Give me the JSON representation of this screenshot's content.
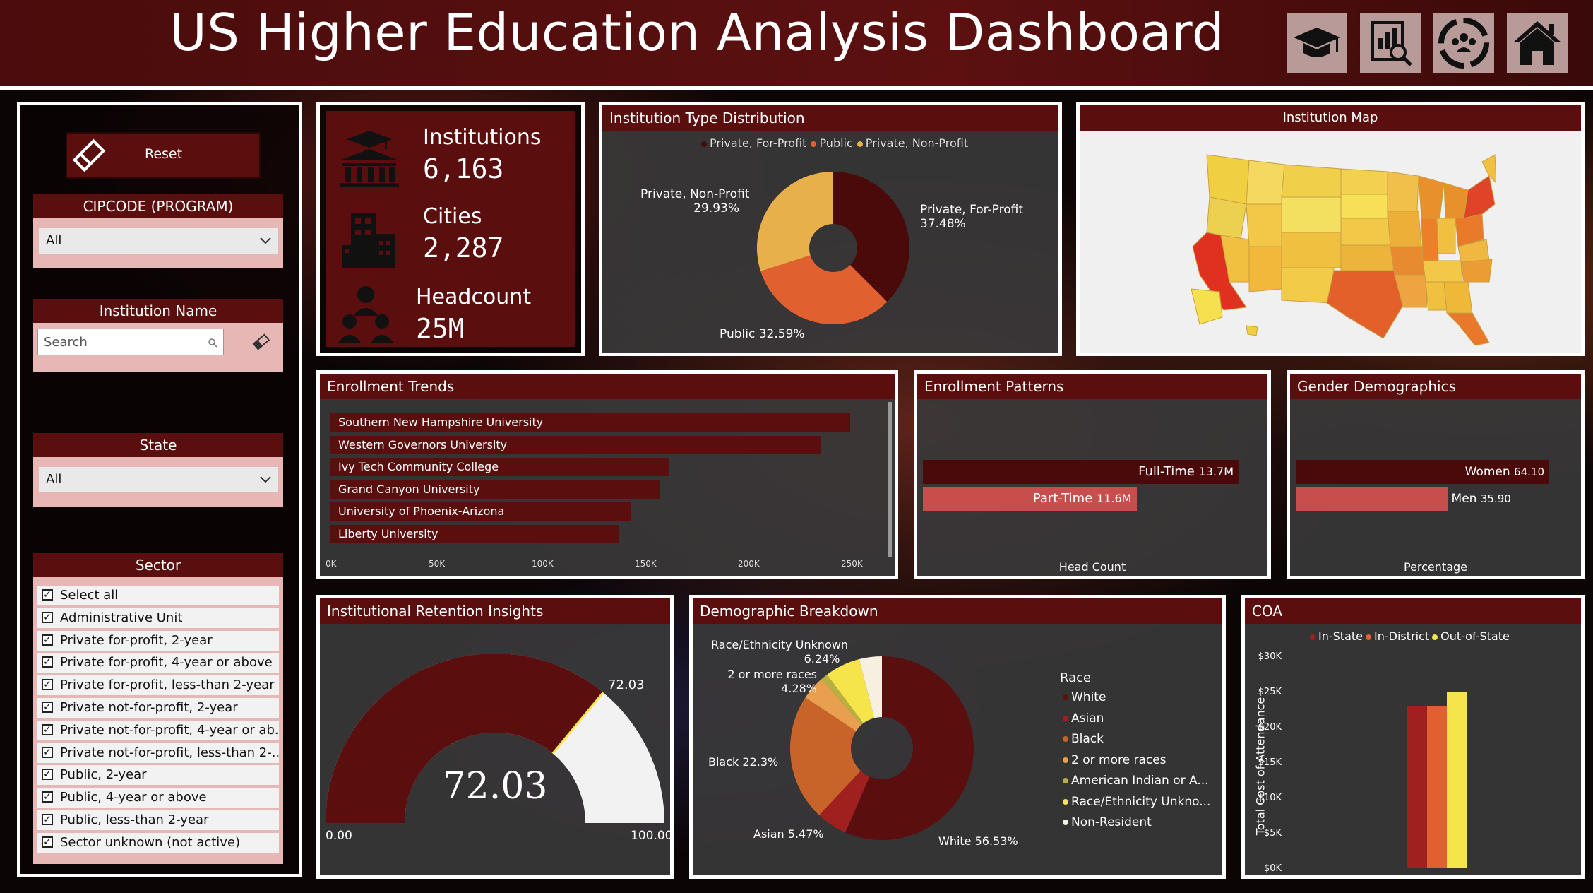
{
  "header": {
    "title": "US Higher Education Analysis Dashboard"
  },
  "nav_icons": [
    "graduation-cap-icon",
    "report-search-icon",
    "demographics-icon",
    "home-icon"
  ],
  "colors": {
    "maroon": "#5a0e0e",
    "dark_red": "#4a0a0a",
    "orange": "#e06030",
    "yellow": "#f5e44a",
    "salmon": "#c84e4e"
  },
  "slicers": {
    "reset_label": "Reset",
    "cipcode": {
      "title": "CIPCODE (PROGRAM)",
      "value": "All"
    },
    "institution_name": {
      "title": "Institution Name",
      "placeholder": "Search"
    },
    "state": {
      "title": "State",
      "value": "All"
    },
    "sector": {
      "title": "Sector",
      "items": [
        "Select all",
        "Administrative Unit",
        "Private for-profit, 2-year",
        "Private for-profit, 4-year or above",
        "Private for-profit, less-than 2-year",
        "Private not-for-profit, 2-year",
        "Private not-for-profit, 4-year or ab...",
        "Private not-for-profit, less-than 2-...",
        "Public, 2-year",
        "Public, 4-year or above",
        "Public, less-than 2-year",
        "Sector unknown (not active)"
      ]
    }
  },
  "kpis": {
    "institutions": {
      "label": "Institutions",
      "value": "6,163"
    },
    "cities": {
      "label": "Cities",
      "value": "2,287"
    },
    "headcount": {
      "label": "Headcount",
      "value": "25M"
    }
  },
  "type_distribution": {
    "title": "Institution Type Distribution",
    "legend": [
      "Private, For-Profit",
      "Public",
      "Private, Non-Profit"
    ],
    "labels": {
      "for_profit": "Private, For-Profit",
      "for_profit_pct": "37.48%",
      "public": "Public 32.59%",
      "non_profit": "Private, Non-Profit",
      "non_profit_pct": "29.93%"
    }
  },
  "map": {
    "title": "Institution Map"
  },
  "enrollment_trends": {
    "title": "Enrollment Trends",
    "ticks": [
      "0K",
      "50K",
      "100K",
      "150K",
      "200K",
      "250K"
    ]
  },
  "enrollment_patterns": {
    "title": "Enrollment Patterns",
    "fulltime_label": "Full-Time",
    "fulltime_value": "13.7M",
    "parttime_label": "Part-Time",
    "parttime_value": "11.6M",
    "axis_label": "Head Count"
  },
  "gender": {
    "title": "Gender Demographics",
    "women_label": "Women",
    "women_value": "64.10",
    "men_label": "Men",
    "men_value": "35.90",
    "axis_label": "Percentage"
  },
  "retention": {
    "title": "Institutional Retention Insights",
    "big_value": "72.03",
    "marker_label": "72.03",
    "min_label": "0.00",
    "max_label": "100.00"
  },
  "demographics": {
    "title": "Demographic Breakdown",
    "legend_title": "Race",
    "legend": [
      "White",
      "Asian",
      "Black",
      "2 or more races",
      "American Indian or A...",
      "Race/Ethnicity Unkno...",
      "Non-Resident"
    ],
    "labels": {
      "unknown_name": "Race/Ethnicity Unknown",
      "unknown_pct": "6.24%",
      "two_more_name": "2 or more races",
      "two_more_pct": "4.28%",
      "black": "Black 22.3%",
      "asian": "Asian 5.47%",
      "white": "White 56.53%"
    }
  },
  "coa": {
    "title": "COA",
    "legend": [
      "In-State",
      "In-District",
      "Out-of-State"
    ],
    "y_axis_title": "Total Cost of Attendance"
  },
  "chart_data": [
    {
      "type": "pie",
      "title": "Institution Type Distribution",
      "categories": [
        "Private, For-Profit",
        "Public",
        "Private, Non-Profit"
      ],
      "values": [
        37.48,
        32.59,
        29.93
      ],
      "colors": [
        "#4a0a0a",
        "#e06030",
        "#e8b04a"
      ],
      "legend": "top"
    },
    {
      "type": "bar",
      "title": "Enrollment Trends",
      "orientation": "horizontal",
      "categories": [
        "Southern New Hampshire University",
        "Western Governors University",
        "Ivy Tech Community College",
        "Grand Canyon University",
        "University of Phoenix-Arizona",
        "Liberty University"
      ],
      "values": [
        252000,
        238000,
        164000,
        160000,
        146000,
        140000
      ],
      "xlim": [
        0,
        270000
      ]
    },
    {
      "type": "bar",
      "title": "Enrollment Patterns",
      "orientation": "horizontal",
      "categories": [
        "Full-Time",
        "Part-Time"
      ],
      "values": [
        13.7,
        11.6
      ],
      "xlabel": "Head Count"
    },
    {
      "type": "bar",
      "title": "Gender Demographics",
      "orientation": "horizontal",
      "categories": [
        "Women",
        "Men"
      ],
      "values": [
        64.1,
        35.9
      ],
      "xlabel": "Percentage"
    },
    {
      "type": "gauge",
      "title": "Institutional Retention Insights",
      "value": 72.03,
      "min": 0,
      "max": 100
    },
    {
      "type": "pie",
      "title": "Demographic Breakdown",
      "categories": [
        "White",
        "Asian",
        "Black",
        "2 or more races",
        "American Indian or A...",
        "Race/Ethnicity Unkno...",
        "Non-Resident"
      ],
      "values": [
        56.53,
        5.47,
        22.3,
        4.28,
        1.2,
        6.24,
        3.98
      ],
      "colors": [
        "#5a0e0e",
        "#a02020",
        "#c8642a",
        "#e8a050",
        "#b8b040",
        "#f5e44a",
        "#f5f0e0"
      ],
      "legend": "right"
    },
    {
      "type": "bar",
      "title": "COA",
      "categories": [
        "In-State",
        "In-District",
        "Out-of-State"
      ],
      "values": [
        23000,
        23000,
        25000
      ],
      "colors": [
        "#a02020",
        "#e06030",
        "#f5e44a"
      ],
      "ylabel": "Total Cost of Attendance",
      "yticks": [
        "$0K",
        "$5K",
        "$10K",
        "$15K",
        "$20K",
        "$25K",
        "$30K"
      ],
      "ylim": [
        0,
        30000
      ],
      "legend": "top"
    }
  ]
}
